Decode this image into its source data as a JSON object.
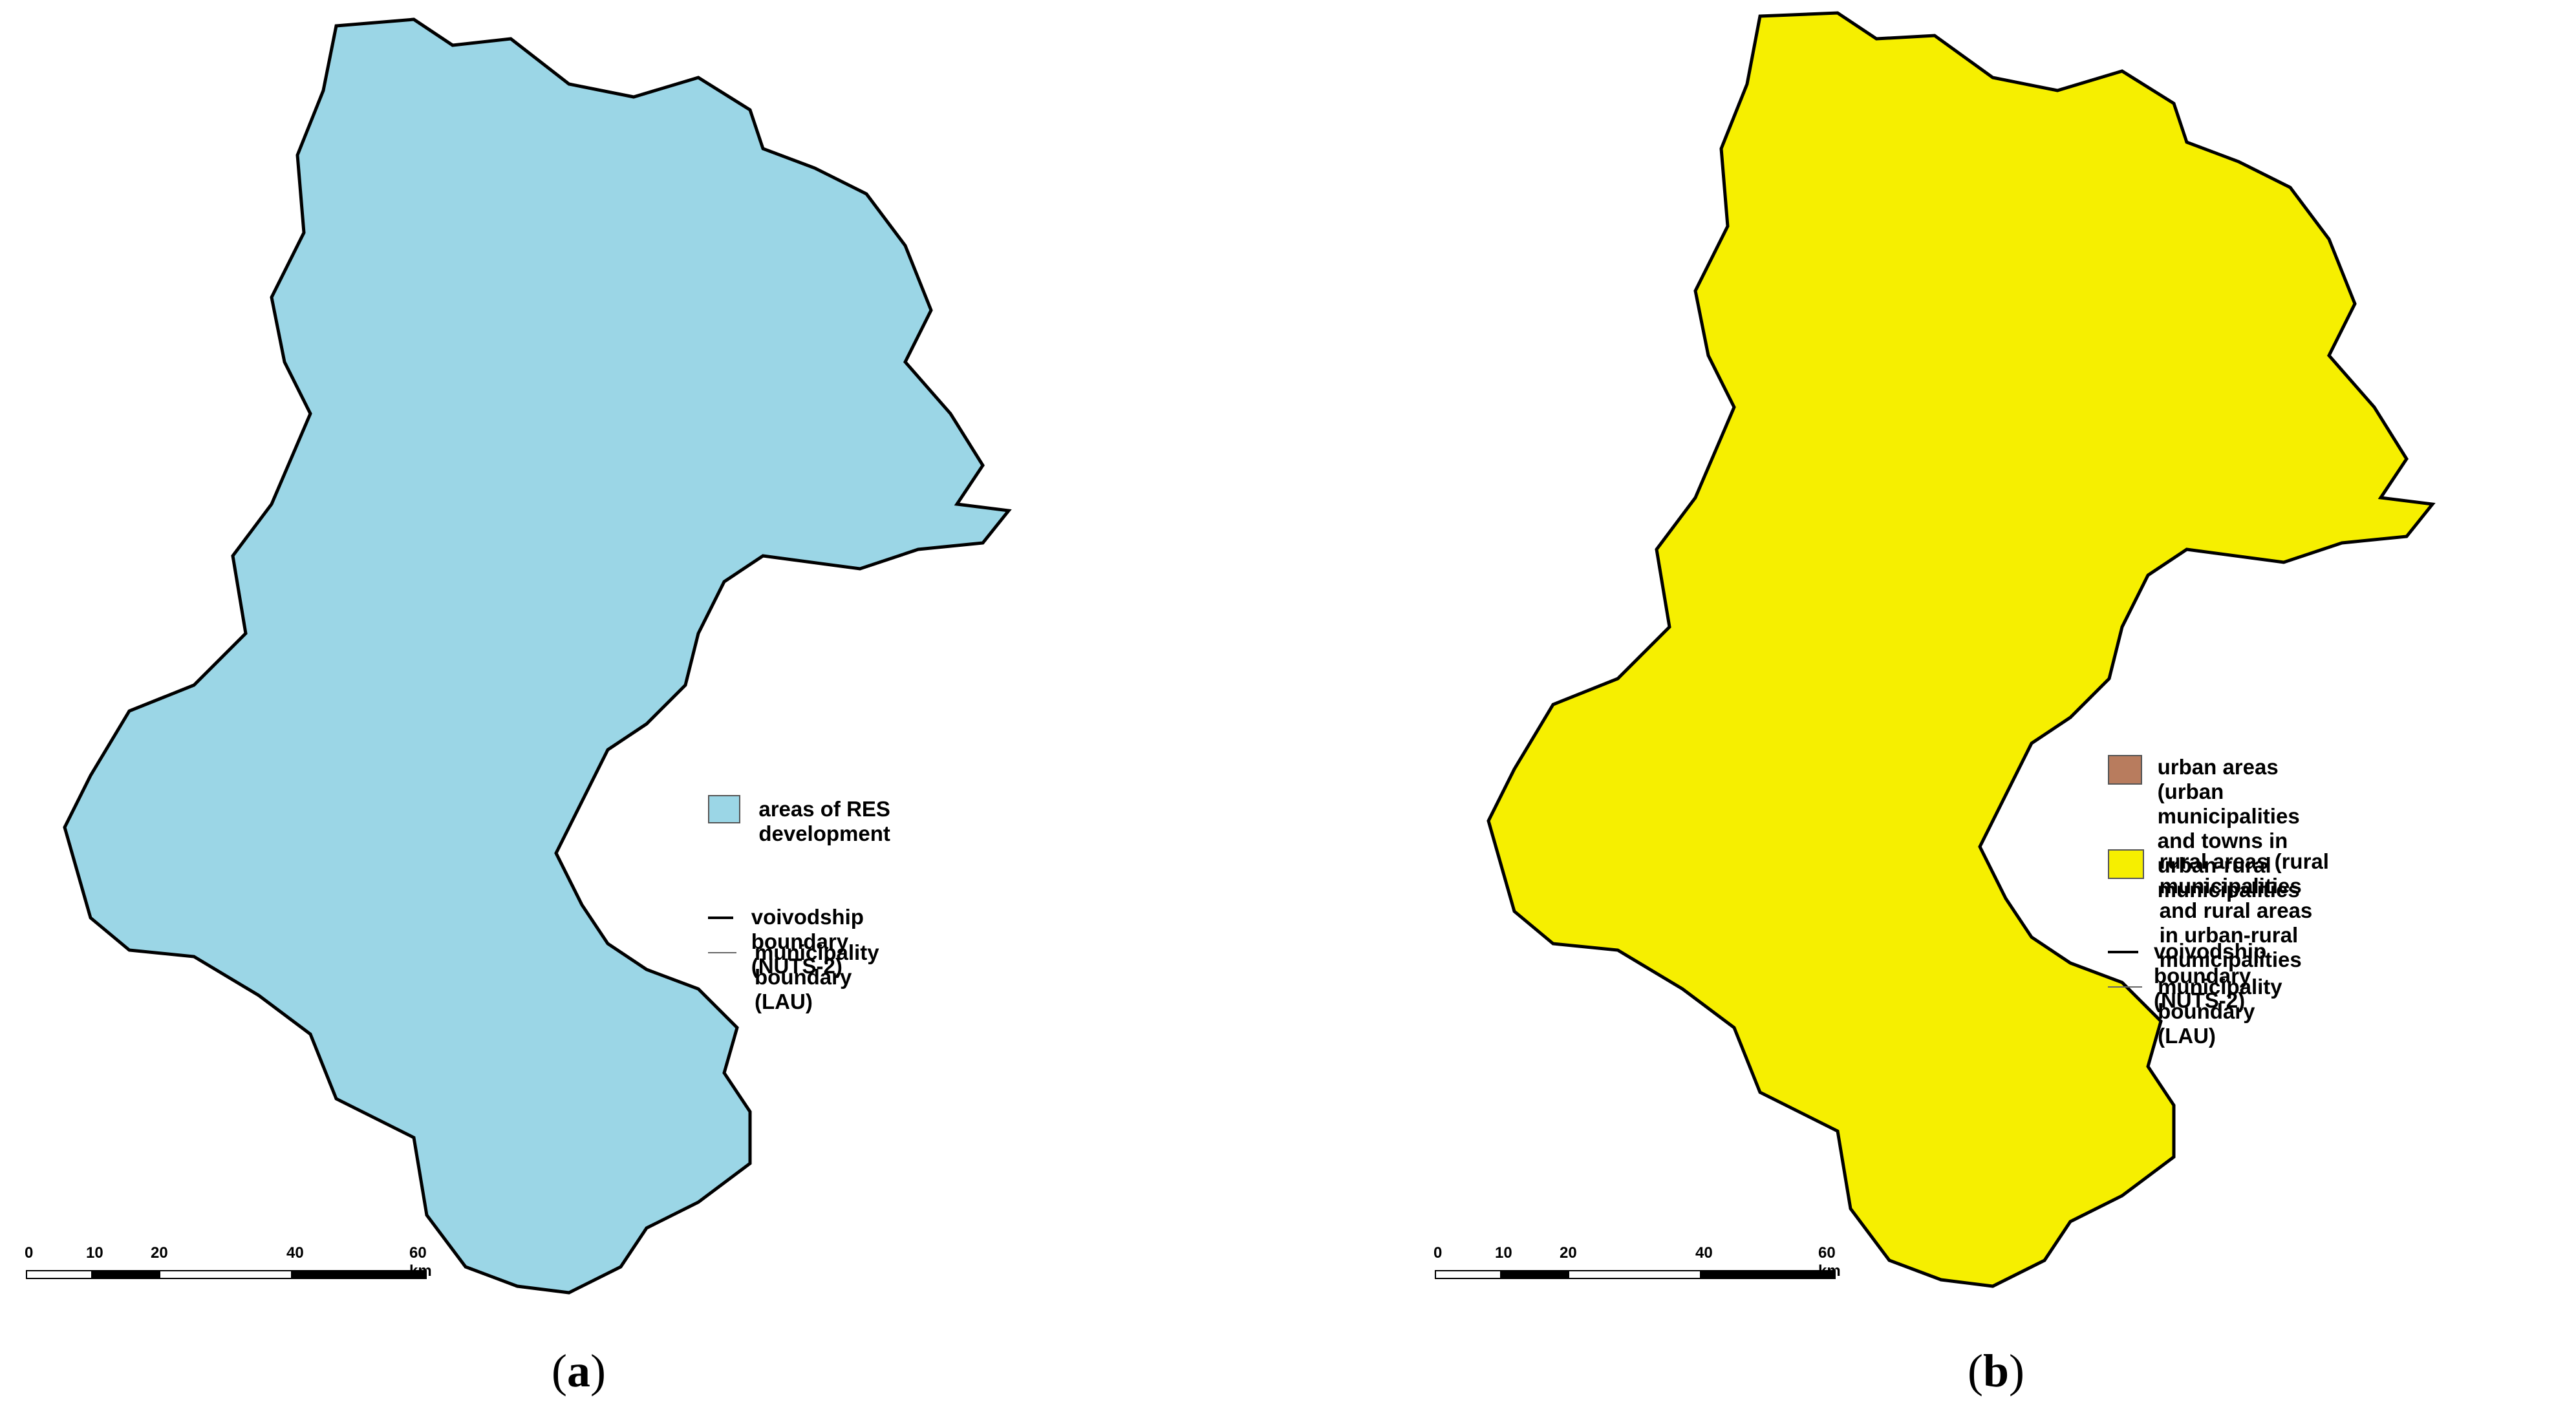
{
  "colors": {
    "res_fill": "#9bd6e6",
    "non_res_fill": "#ffffff",
    "urban_fill": "#b87c5e",
    "rural_fill": "#f6ef00",
    "boundary": "#000000",
    "municipality_line": "#333333"
  },
  "panel_a": {
    "legend": {
      "res_label": "areas of RES development",
      "voivodship_label": "voivodship boundary (NUTS-2)",
      "municipality_label": "municipality boundary (LAU)"
    },
    "scale": {
      "labels": [
        "0",
        "10",
        "20",
        "40",
        "60 km"
      ]
    },
    "caption_letter": "a"
  },
  "panel_b": {
    "legend": {
      "urban_label_1": "urban areas (urban municipalities",
      "urban_label_2": "and towns in urban-rural",
      "urban_label_3": "municipalities",
      "rural_label_1": "rural areas (rural municipalities",
      "rural_label_2": "and rural areas in urban-rural",
      "rural_label_3": "municipalities",
      "voivodship_label": "voivodship boundary (NUTS-2)",
      "municipality_label": "municipality boundary (LAU)"
    },
    "scale": {
      "labels": [
        "0",
        "10",
        "20",
        "40",
        "60 km"
      ]
    },
    "caption_letter": "b"
  }
}
